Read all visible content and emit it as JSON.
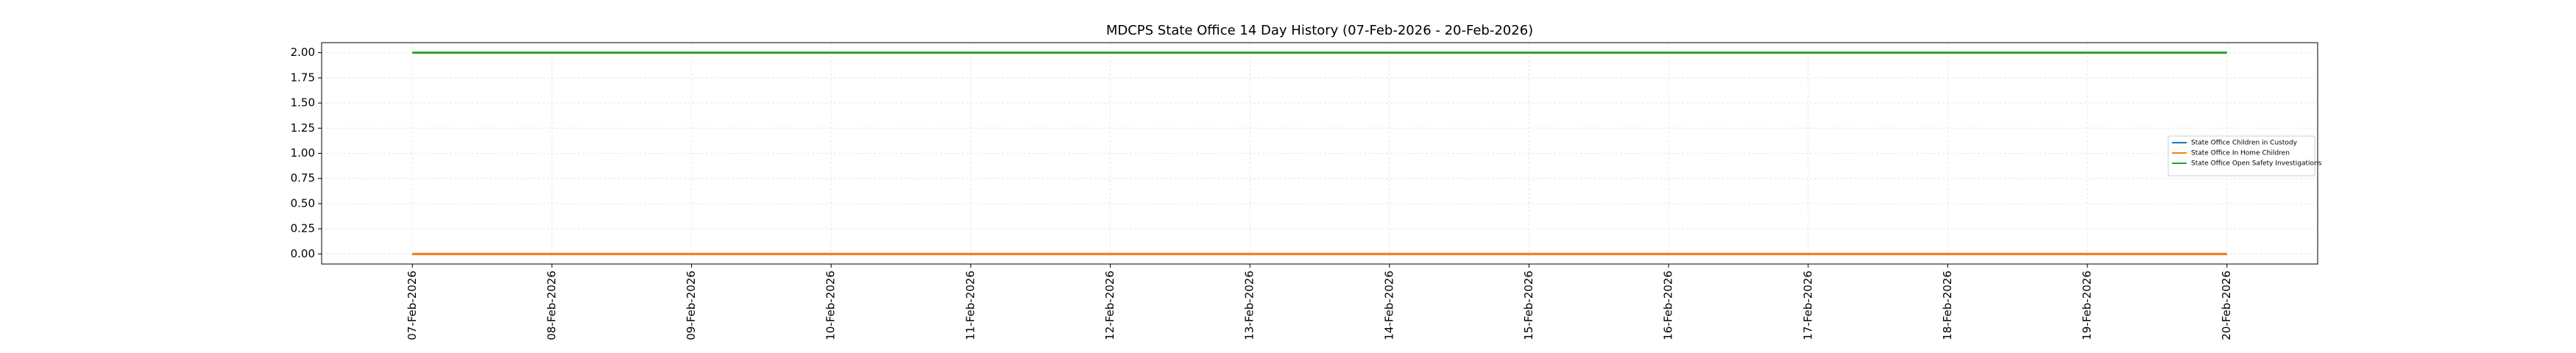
{
  "chart_data": {
    "type": "line",
    "title": "MDCPS State Office 14 Day History (07-Feb-2026 - 20-Feb-2026)",
    "x": [
      "07-Feb-2026",
      "08-Feb-2026",
      "09-Feb-2026",
      "10-Feb-2026",
      "11-Feb-2026",
      "12-Feb-2026",
      "13-Feb-2026",
      "14-Feb-2026",
      "15-Feb-2026",
      "16-Feb-2026",
      "17-Feb-2026",
      "18-Feb-2026",
      "19-Feb-2026",
      "20-Feb-2026"
    ],
    "series": [
      {
        "name": "State Office Children in Custody",
        "color": "#1f77b4",
        "values": [
          0,
          0,
          0,
          0,
          0,
          0,
          0,
          0,
          0,
          0,
          0,
          0,
          0,
          0
        ]
      },
      {
        "name": "State Office In Home Children",
        "color": "#ff7f0e",
        "values": [
          0,
          0,
          0,
          0,
          0,
          0,
          0,
          0,
          0,
          0,
          0,
          0,
          0,
          0
        ]
      },
      {
        "name": "State Office Open Safety Investigations",
        "color": "#2ca02c",
        "values": [
          2,
          2,
          2,
          2,
          2,
          2,
          2,
          2,
          2,
          2,
          2,
          2,
          2,
          2
        ]
      }
    ],
    "ylim": [
      -0.1,
      2.1
    ],
    "yticks": [
      {
        "value": 0,
        "label": "0.00"
      },
      {
        "value": 0.25,
        "label": "0.25"
      },
      {
        "value": 0.5,
        "label": "0.50"
      },
      {
        "value": 0.75,
        "label": "0.75"
      },
      {
        "value": 1,
        "label": "1.00"
      },
      {
        "value": 1.25,
        "label": "1.25"
      },
      {
        "value": 1.5,
        "label": "1.50"
      },
      {
        "value": 1.75,
        "label": "1.75"
      },
      {
        "value": 2,
        "label": "2.00"
      }
    ],
    "grid": true,
    "legend": "right"
  }
}
